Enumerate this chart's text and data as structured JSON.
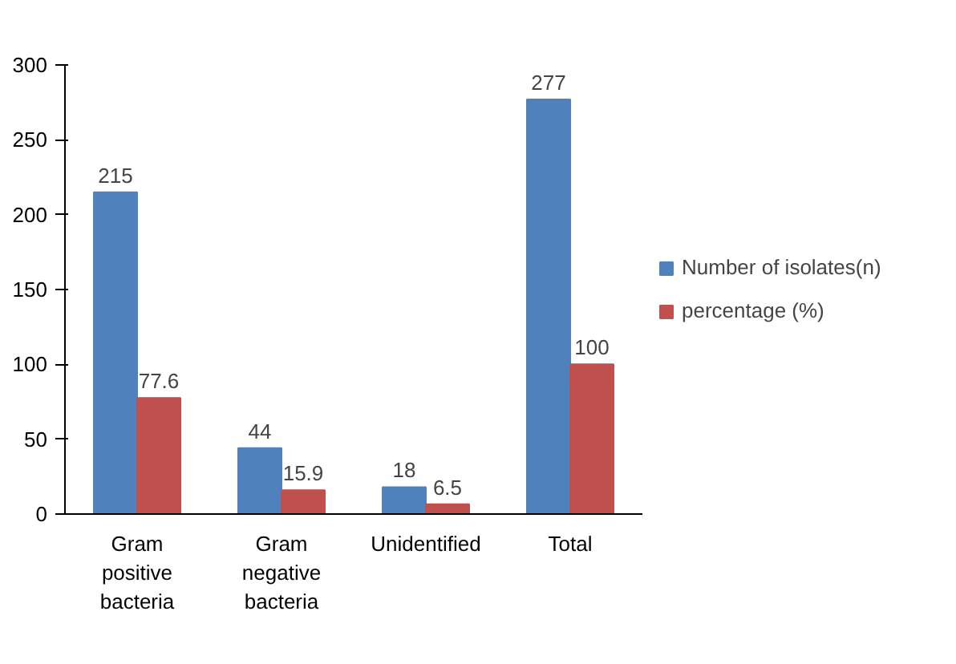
{
  "chart_data": {
    "type": "bar",
    "categories": [
      "Gram positive bacteria",
      "Gram negative bacteria",
      "Unidentified",
      "Total"
    ],
    "series": [
      {
        "name": "Number of isolates(n)",
        "color": "#4f81bd",
        "values": [
          215,
          44,
          18,
          277
        ]
      },
      {
        "name": "percentage (%)",
        "color": "#c0504d",
        "values": [
          77.6,
          15.9,
          6.5,
          100
        ]
      }
    ],
    "ylim": [
      0,
      300
    ],
    "yticks": [
      0,
      50,
      100,
      150,
      200,
      250,
      300
    ],
    "grid": false,
    "legend": "right",
    "data_labels": true
  }
}
